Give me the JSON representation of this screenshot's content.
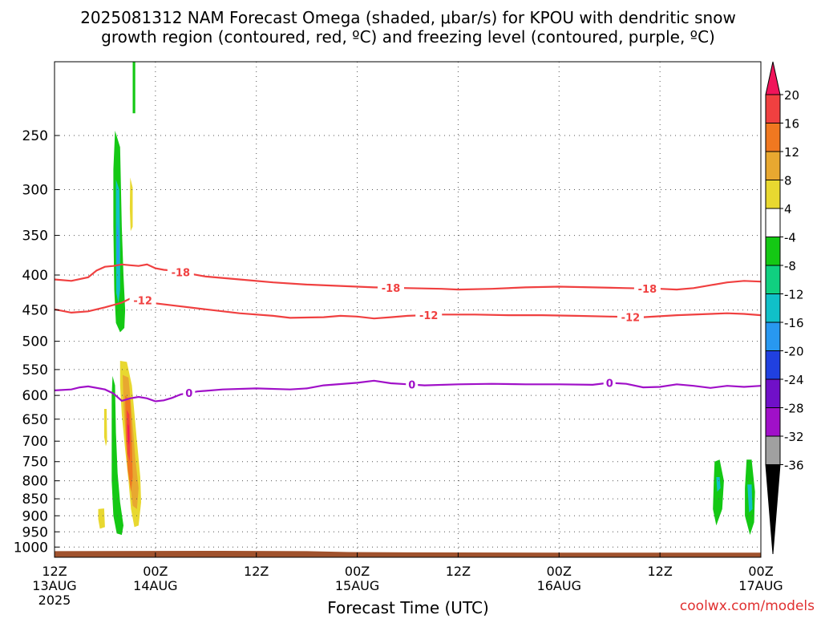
{
  "chart_data": {
    "type": "heatmap",
    "title_line1": "2025081312 NAM Forecast Omega (shaded, μbar/s) for KPOU with dendritic snow",
    "title_line2": "growth region (contoured, red, ºC) and freezing level (contoured, purple, ºC)",
    "xlabel": "Forecast Time (UTC)",
    "credit": "coolwx.com/models",
    "x_hours_range": [
      0,
      84
    ],
    "y_log_pressure": true,
    "ylim_hPa": [
      1035,
      195
    ],
    "grid": true,
    "x_ticks": [
      {
        "hour": 0,
        "lines": [
          "12Z",
          "13AUG",
          "2025"
        ]
      },
      {
        "hour": 12,
        "lines": [
          "00Z",
          "14AUG"
        ]
      },
      {
        "hour": 24,
        "lines": [
          "12Z"
        ]
      },
      {
        "hour": 36,
        "lines": [
          "00Z",
          "15AUG"
        ]
      },
      {
        "hour": 48,
        "lines": [
          "12Z"
        ]
      },
      {
        "hour": 60,
        "lines": [
          "00Z",
          "16AUG"
        ]
      },
      {
        "hour": 72,
        "lines": [
          "12Z"
        ]
      },
      {
        "hour": 84,
        "lines": [
          "00Z",
          "17AUG"
        ]
      }
    ],
    "y_ticks": [
      250,
      300,
      350,
      400,
      450,
      500,
      550,
      600,
      650,
      700,
      750,
      800,
      850,
      900,
      950,
      1000
    ],
    "colorbar": {
      "labels": [
        "20",
        "16",
        "12",
        "8",
        "4",
        "-4",
        "-8",
        "-12",
        "-16",
        "-20",
        "-24",
        "-28",
        "-32",
        "-36"
      ],
      "colors": [
        "#f0145a",
        "#f04040",
        "#f07820",
        "#e8a830",
        "#e8d830",
        "#ffffff",
        "#14c814",
        "#10d080",
        "#10c0c8",
        "#2898f0",
        "#2040e0",
        "#7010c8",
        "#a010c8",
        "#a0a0a0",
        "#000000"
      ]
    },
    "colors": {
      "dgz_contour": "#f04040",
      "freezing_contour": "#a010c8",
      "ground": "#a0522d",
      "credit": "#e03030"
    },
    "series": [
      {
        "name": "-18",
        "points": [
          [
            0,
            406
          ],
          [
            2,
            408
          ],
          [
            4,
            403
          ],
          [
            5,
            394
          ],
          [
            6,
            389
          ],
          [
            7,
            388
          ],
          [
            8,
            386
          ],
          [
            9,
            387
          ],
          [
            10,
            388
          ],
          [
            11,
            386
          ],
          [
            12,
            391
          ],
          [
            13,
            393
          ],
          [
            14,
            394
          ],
          [
            16,
            398
          ],
          [
            18,
            402
          ],
          [
            22,
            406
          ],
          [
            26,
            410
          ],
          [
            30,
            413
          ],
          [
            34,
            415
          ],
          [
            38,
            417
          ],
          [
            42,
            418
          ],
          [
            46,
            419
          ],
          [
            48,
            420
          ],
          [
            52,
            419
          ],
          [
            56,
            417
          ],
          [
            60,
            416
          ],
          [
            64,
            417
          ],
          [
            68,
            418
          ],
          [
            72,
            419
          ],
          [
            74,
            420
          ],
          [
            76,
            418
          ],
          [
            78,
            414
          ],
          [
            80,
            410
          ],
          [
            82,
            408
          ],
          [
            84,
            409
          ]
        ],
        "labels_at_hours": [
          15,
          40,
          70.5
        ]
      },
      {
        "name": "-12",
        "points": [
          [
            0,
            449
          ],
          [
            2,
            454
          ],
          [
            4,
            452
          ],
          [
            6,
            446
          ],
          [
            8,
            439
          ],
          [
            9,
            433
          ],
          [
            10,
            435
          ],
          [
            11,
            436
          ],
          [
            12,
            440
          ],
          [
            14,
            443
          ],
          [
            18,
            449
          ],
          [
            22,
            455
          ],
          [
            26,
            459
          ],
          [
            28,
            462
          ],
          [
            32,
            461
          ],
          [
            34,
            459
          ],
          [
            36,
            460
          ],
          [
            38,
            463
          ],
          [
            40,
            461
          ],
          [
            42,
            459
          ],
          [
            46,
            457
          ],
          [
            50,
            457
          ],
          [
            54,
            458
          ],
          [
            58,
            458
          ],
          [
            62,
            459
          ],
          [
            66,
            460
          ],
          [
            70,
            461
          ],
          [
            74,
            458
          ],
          [
            78,
            456
          ],
          [
            80,
            455
          ],
          [
            82,
            456
          ],
          [
            84,
            458
          ]
        ],
        "labels_at_hours": [
          10.5,
          44.5,
          68.5
        ]
      },
      {
        "name": "0",
        "points": [
          [
            0,
            590
          ],
          [
            2,
            588
          ],
          [
            3,
            584
          ],
          [
            4,
            582
          ],
          [
            6,
            588
          ],
          [
            7,
            596
          ],
          [
            8,
            611
          ],
          [
            9,
            606
          ],
          [
            10,
            603
          ],
          [
            11,
            606
          ],
          [
            12,
            612
          ],
          [
            13,
            610
          ],
          [
            14,
            605
          ],
          [
            15,
            598
          ],
          [
            17,
            592
          ],
          [
            20,
            588
          ],
          [
            24,
            586
          ],
          [
            28,
            588
          ],
          [
            30,
            586
          ],
          [
            32,
            580
          ],
          [
            36,
            575
          ],
          [
            38,
            571
          ],
          [
            40,
            576
          ],
          [
            44,
            580
          ],
          [
            48,
            578
          ],
          [
            52,
            577
          ],
          [
            56,
            578
          ],
          [
            60,
            578
          ],
          [
            64,
            579
          ],
          [
            66,
            575
          ],
          [
            68,
            577
          ],
          [
            70,
            584
          ],
          [
            72,
            583
          ],
          [
            74,
            578
          ],
          [
            76,
            581
          ],
          [
            78,
            585
          ],
          [
            80,
            581
          ],
          [
            82,
            583
          ],
          [
            84,
            581
          ]
        ],
        "labels_at_hours": [
          16,
          42.5,
          66
        ]
      }
    ],
    "omega_regions": [
      {
        "value": -8,
        "color": "#14c814",
        "path": [
          [
            7.2,
            246
          ],
          [
            7.8,
            260
          ],
          [
            8.0,
            340
          ],
          [
            8.2,
            400
          ],
          [
            8.4,
            450
          ],
          [
            8.3,
            478
          ],
          [
            7.8,
            485
          ],
          [
            7.3,
            470
          ],
          [
            7.1,
            420
          ],
          [
            7.0,
            340
          ],
          [
            7.0,
            280
          ]
        ]
      },
      {
        "value": -14,
        "color": "#10c0c8",
        "path": [
          [
            7.3,
            290
          ],
          [
            7.7,
            300
          ],
          [
            7.8,
            360
          ],
          [
            7.8,
            420
          ],
          [
            7.6,
            440
          ],
          [
            7.35,
            425
          ],
          [
            7.3,
            360
          ]
        ]
      },
      {
        "value": -18,
        "color": "#2898f0",
        "path": [
          [
            7.4,
            335
          ],
          [
            7.6,
            345
          ],
          [
            7.65,
            380
          ],
          [
            7.5,
            395
          ],
          [
            7.4,
            380
          ]
        ]
      },
      {
        "value": -6,
        "color": "#14c814",
        "path": [
          [
            9.3,
            195
          ],
          [
            9.6,
            195
          ],
          [
            9.6,
            232
          ],
          [
            9.3,
            232
          ]
        ]
      },
      {
        "value": 6,
        "color": "#e8d830",
        "path": [
          [
            9.0,
            288
          ],
          [
            9.3,
            298
          ],
          [
            9.3,
            340
          ],
          [
            9.05,
            345
          ],
          [
            8.95,
            320
          ]
        ]
      },
      {
        "value": -8,
        "color": "#14c814",
        "path": [
          [
            6.9,
            562
          ],
          [
            7.2,
            580
          ],
          [
            7.3,
            680
          ],
          [
            7.5,
            780
          ],
          [
            7.8,
            860
          ],
          [
            8.2,
            930
          ],
          [
            8.0,
            960
          ],
          [
            7.4,
            955
          ],
          [
            7.0,
            900
          ],
          [
            6.8,
            800
          ],
          [
            6.8,
            680
          ],
          [
            6.8,
            600
          ]
        ]
      },
      {
        "value": 6,
        "color": "#e8d830",
        "path": [
          [
            7.8,
            534
          ],
          [
            8.6,
            536
          ],
          [
            9.2,
            580
          ],
          [
            9.8,
            700
          ],
          [
            10.2,
            790
          ],
          [
            10.3,
            860
          ],
          [
            10.0,
            930
          ],
          [
            9.5,
            935
          ],
          [
            9.1,
            880
          ],
          [
            8.8,
            800
          ],
          [
            8.4,
            720
          ],
          [
            8.0,
            640
          ],
          [
            7.8,
            580
          ]
        ]
      },
      {
        "value": 10,
        "color": "#e8a830",
        "path": [
          [
            8.1,
            560
          ],
          [
            8.8,
            565
          ],
          [
            9.2,
            640
          ],
          [
            9.6,
            740
          ],
          [
            10.0,
            820
          ],
          [
            9.8,
            880
          ],
          [
            9.3,
            870
          ],
          [
            8.9,
            790
          ],
          [
            8.5,
            700
          ],
          [
            8.2,
            620
          ]
        ]
      },
      {
        "value": 14,
        "color": "#f07820",
        "path": [
          [
            8.4,
            600
          ],
          [
            9.0,
            610
          ],
          [
            9.2,
            700
          ],
          [
            9.3,
            790
          ],
          [
            9.1,
            830
          ],
          [
            8.7,
            770
          ],
          [
            8.5,
            700
          ]
        ]
      },
      {
        "value": 18,
        "color": "#f04040",
        "path": [
          [
            8.6,
            630
          ],
          [
            8.9,
            640
          ],
          [
            9.0,
            700
          ],
          [
            8.95,
            750
          ],
          [
            8.7,
            730
          ],
          [
            8.6,
            680
          ]
        ]
      },
      {
        "value": 22,
        "color": "#f0145a",
        "path": [
          [
            8.7,
            660
          ],
          [
            8.85,
            665
          ],
          [
            8.9,
            700
          ],
          [
            8.75,
            710
          ]
        ]
      },
      {
        "value": 6,
        "color": "#e8d830",
        "path": [
          [
            5.9,
            628
          ],
          [
            6.2,
            628
          ],
          [
            6.25,
            700
          ],
          [
            6.1,
            712
          ],
          [
            5.9,
            690
          ]
        ]
      },
      {
        "value": 6,
        "color": "#e8d830",
        "path": [
          [
            5.2,
            880
          ],
          [
            5.9,
            878
          ],
          [
            6.0,
            935
          ],
          [
            5.4,
            940
          ],
          [
            5.2,
            910
          ]
        ]
      },
      {
        "value": -8,
        "color": "#14c814",
        "path": [
          [
            78.5,
            750
          ],
          [
            79.1,
            745
          ],
          [
            79.6,
            800
          ],
          [
            79.4,
            880
          ],
          [
            78.7,
            930
          ],
          [
            78.3,
            880
          ],
          [
            78.4,
            800
          ]
        ]
      },
      {
        "value": -14,
        "color": "#10c0c8",
        "path": [
          [
            78.7,
            790
          ],
          [
            79.1,
            790
          ],
          [
            79.2,
            820
          ],
          [
            78.8,
            830
          ]
        ]
      },
      {
        "value": -8,
        "color": "#14c814",
        "path": [
          [
            82.3,
            745
          ],
          [
            82.9,
            745
          ],
          [
            83.3,
            830
          ],
          [
            83.2,
            920
          ],
          [
            82.7,
            960
          ],
          [
            82.1,
            900
          ],
          [
            82.1,
            820
          ]
        ]
      },
      {
        "value": -14,
        "color": "#10c0c8",
        "path": [
          [
            82.4,
            810
          ],
          [
            82.9,
            810
          ],
          [
            83.0,
            880
          ],
          [
            82.6,
            890
          ]
        ]
      }
    ],
    "ground_surface": [
      [
        0,
        1014
      ],
      [
        20,
        1013
      ],
      [
        30,
        1014
      ],
      [
        35,
        1017
      ],
      [
        42,
        1018
      ],
      [
        60,
        1019
      ],
      [
        84,
        1019
      ]
    ]
  }
}
